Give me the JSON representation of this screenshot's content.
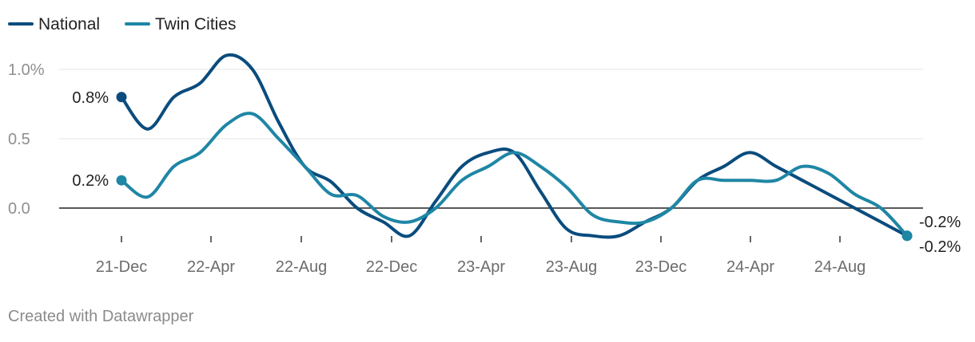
{
  "chart_data": {
    "type": "line",
    "title": "",
    "xlabel": "",
    "ylabel": "",
    "x_ticks": [
      "21-Dec",
      "22-Apr",
      "22-Aug",
      "22-Dec",
      "23-Apr",
      "23-Aug",
      "23-Dec",
      "24-Apr",
      "24-Aug"
    ],
    "y_ticks": [
      "1.0%",
      "0.5",
      "0.0"
    ],
    "ylim": [
      -0.2,
      1.1
    ],
    "grid": true,
    "legend": "top-left",
    "series": [
      {
        "name": "National",
        "color": "#0a4c7d",
        "values": [
          0.8,
          0.57,
          0.8,
          0.9,
          1.1,
          1.0,
          0.62,
          0.3,
          0.19,
          0.0,
          -0.1,
          -0.2,
          0.05,
          0.3,
          0.4,
          0.4,
          0.12,
          -0.15,
          -0.2,
          -0.2,
          -0.1,
          0.0,
          0.2,
          0.3,
          0.4,
          0.3,
          0.2,
          0.1,
          0.0,
          -0.1,
          -0.2
        ],
        "start_label": "0.8%",
        "end_label": "-0.2%"
      },
      {
        "name": "Twin Cities",
        "color": "#1f86a5",
        "values": [
          0.2,
          0.08,
          0.3,
          0.4,
          0.6,
          0.68,
          0.5,
          0.3,
          0.1,
          0.09,
          -0.06,
          -0.1,
          0.0,
          0.2,
          0.3,
          0.4,
          0.3,
          0.15,
          -0.05,
          -0.1,
          -0.1,
          0.0,
          0.2,
          0.2,
          0.2,
          0.2,
          0.3,
          0.25,
          0.1,
          0.0,
          -0.2
        ],
        "start_label": "0.2%",
        "end_label": "-0.2%"
      }
    ]
  },
  "footer": {
    "credit": "Created with Datawrapper"
  }
}
